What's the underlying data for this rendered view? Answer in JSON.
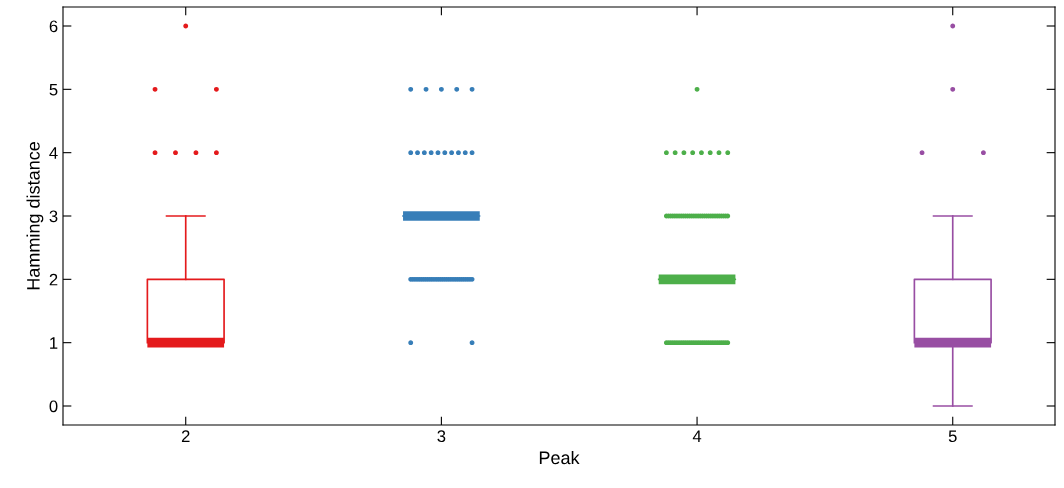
{
  "chart_data": {
    "type": "box",
    "xlabel": "Peak",
    "ylabel": "Hamming distance",
    "categories": [
      "2",
      "3",
      "4",
      "5"
    ],
    "colors": [
      "#e41a1c",
      "#377eb8",
      "#4daf4a",
      "#984ea3"
    ],
    "boxes": [
      {
        "low": 1,
        "q1": 1,
        "median": 1,
        "q3": 2,
        "high": 3,
        "outliers": [
          6,
          5,
          5,
          4,
          4,
          4,
          4
        ]
      },
      {
        "low": 3,
        "q1": 3,
        "median": 3,
        "q3": 3,
        "high": 3,
        "outliers": [
          5,
          5,
          5,
          5,
          5,
          4,
          4,
          4,
          4,
          4,
          4,
          4,
          4,
          4,
          4,
          2,
          2,
          2,
          2,
          2,
          2,
          2,
          2,
          2,
          2,
          2,
          2,
          2,
          2,
          2,
          2,
          2,
          2,
          2,
          2,
          2,
          2,
          2,
          2,
          2,
          2,
          2,
          2,
          2,
          2,
          1,
          1
        ]
      },
      {
        "low": 2,
        "q1": 2,
        "median": 2,
        "q3": 2,
        "high": 2,
        "outliers": [
          5,
          4,
          4,
          4,
          4,
          4,
          4,
          4,
          4,
          3,
          3,
          3,
          3,
          3,
          3,
          3,
          3,
          3,
          3,
          3,
          3,
          3,
          3,
          3,
          3,
          3,
          3,
          3,
          3,
          3,
          3,
          3,
          3,
          3,
          3,
          3,
          3,
          3,
          3,
          1,
          1,
          1,
          1,
          1,
          1,
          1,
          1,
          1,
          1,
          1,
          1,
          1,
          1,
          1,
          1,
          1,
          1,
          1,
          1,
          1,
          1,
          1,
          1,
          1,
          1,
          1,
          1,
          1,
          1
        ]
      },
      {
        "low": 0,
        "q1": 1,
        "median": 1,
        "q3": 2,
        "high": 3,
        "outliers": [
          6,
          5,
          4,
          4
        ]
      }
    ],
    "ylim": [
      -0.3,
      6.3
    ],
    "yticks": [
      0,
      1,
      2,
      3,
      4,
      5,
      6
    ],
    "grid": false,
    "legend": false
  }
}
